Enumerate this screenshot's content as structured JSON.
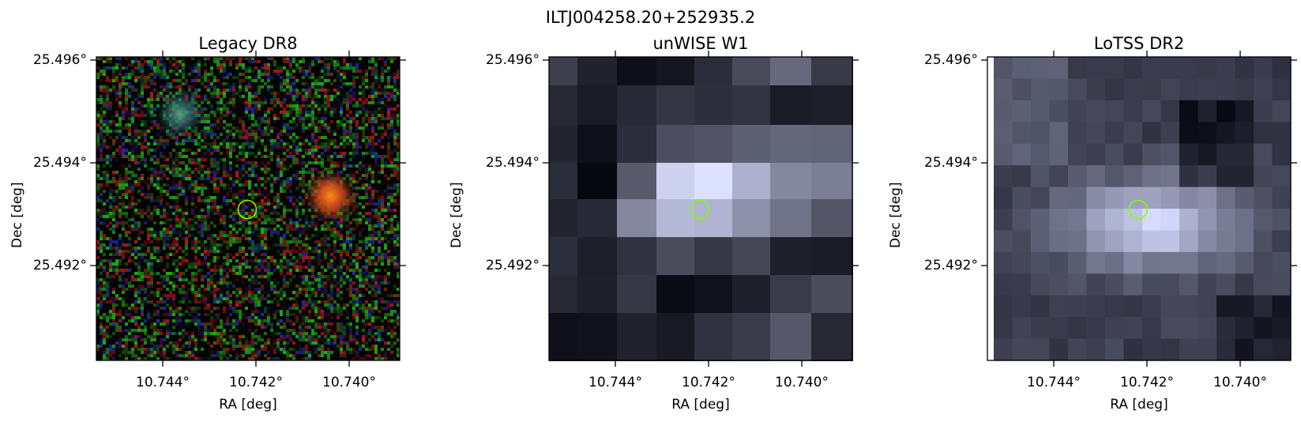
{
  "figure": {
    "title": "ILTJ004258.20+252935.2",
    "marker_color": "#7fff00"
  },
  "panels": [
    {
      "title": "Legacy DR8",
      "xlabel": "RA [deg]",
      "ylabel": "Dec [deg]",
      "xticks": [
        "10.744°",
        "10.742°",
        "10.740°"
      ],
      "yticks": [
        "25.496°",
        "25.494°",
        "25.492°"
      ],
      "image": "optical-rgb-cutout"
    },
    {
      "title": "unWISE W1",
      "xlabel": "RA [deg]",
      "ylabel": "Dec [deg]",
      "xticks": [
        "10.744°",
        "10.742°",
        "10.740°"
      ],
      "yticks": [
        "25.496°",
        "25.494°",
        "25.492°"
      ],
      "image": "infrared-grayscale-cutout"
    },
    {
      "title": "LoTSS DR2",
      "xlabel": "RA [deg]",
      "ylabel": "Dec [deg]",
      "xticks": [
        "10.744°",
        "10.742°",
        "10.740°"
      ],
      "yticks": [
        "25.496°",
        "25.494°",
        "25.492°"
      ],
      "image": "radio-grayscale-cutout"
    }
  ]
}
